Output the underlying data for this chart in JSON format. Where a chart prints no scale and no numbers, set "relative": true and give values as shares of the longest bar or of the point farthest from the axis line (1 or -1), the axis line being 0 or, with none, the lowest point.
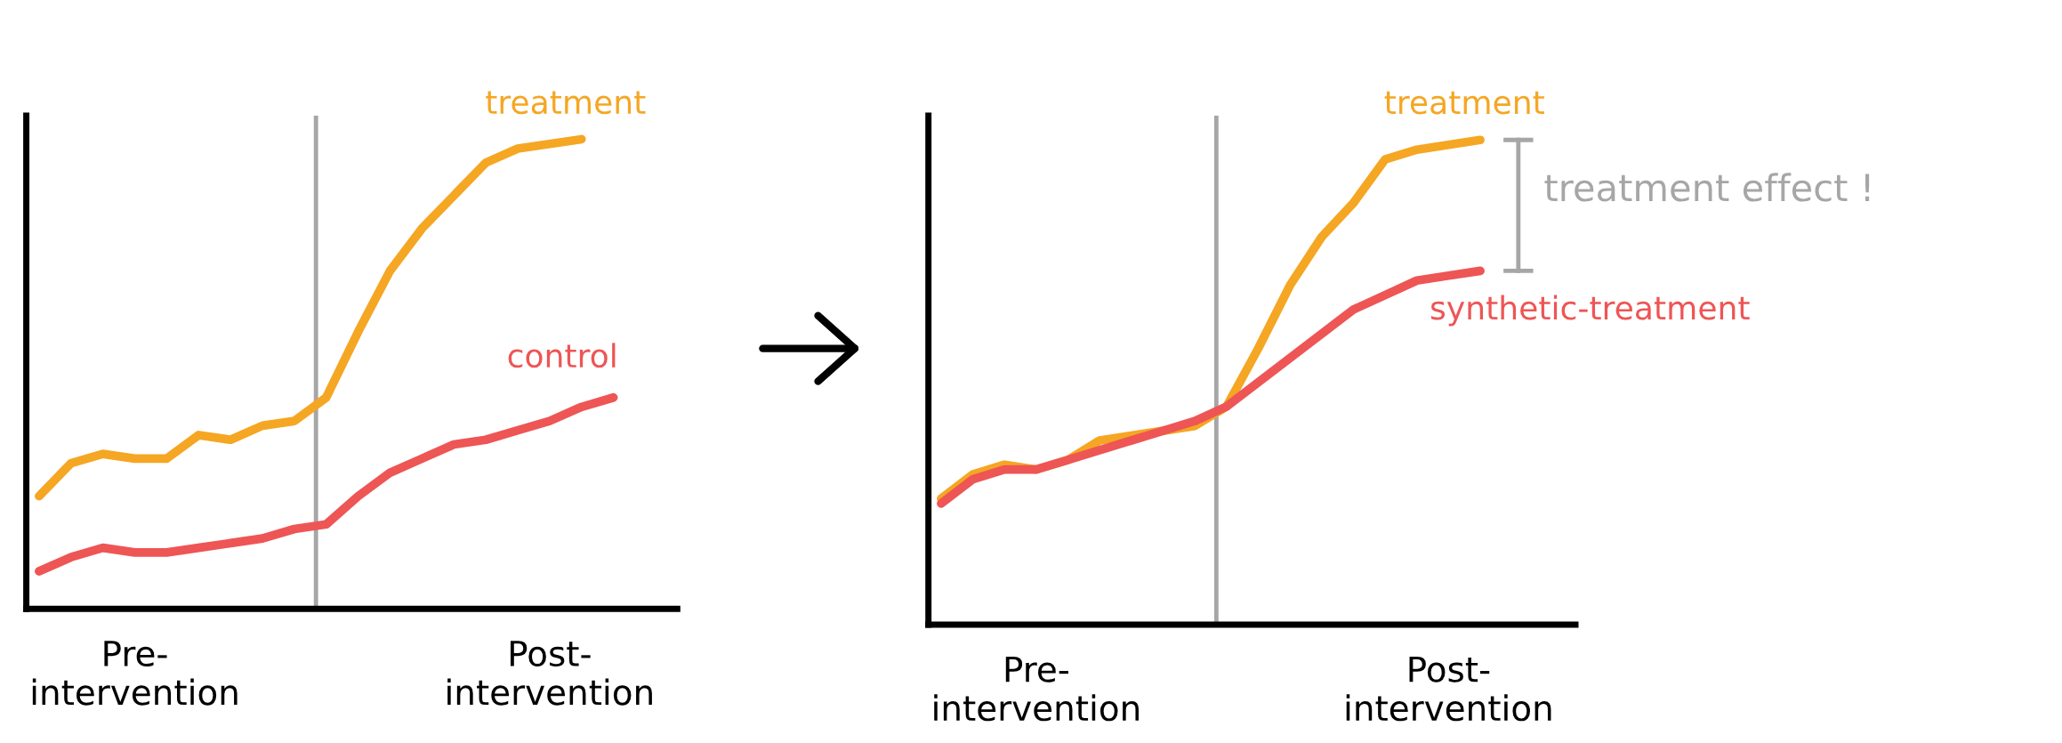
{
  "chart_data": [
    {
      "type": "line",
      "relative": true,
      "categories": [
        null,
        null,
        null,
        "Pre-\nintervention",
        null,
        null,
        null,
        null,
        null,
        null,
        null,
        null,
        null,
        null,
        null,
        null,
        "Post-\nintervention",
        null,
        null,
        null,
        null
      ],
      "tick_labels": "x",
      "legend": false,
      "grid": false,
      "marker": "none",
      "line_style": "solid",
      "series": [
        {
          "name": "treatment",
          "color": "#f5a623",
          "values": [
            0.24,
            0.31,
            0.33,
            0.32,
            0.32,
            0.37,
            0.36,
            0.39,
            0.4,
            0.45,
            0.59,
            0.72,
            0.81,
            0.88,
            0.95,
            0.98,
            0.99,
            1.0,
            null,
            null,
            null
          ]
        },
        {
          "name": "control",
          "color": "#ee5555",
          "values": [
            0.08,
            0.11,
            0.13,
            0.12,
            0.12,
            0.13,
            0.14,
            0.15,
            0.17,
            0.18,
            0.24,
            0.29,
            0.32,
            0.35,
            0.36,
            0.38,
            0.4,
            0.43,
            0.45,
            null,
            null
          ]
        }
      ]
    },
    {
      "type": "line",
      "relative": true,
      "categories": [
        null,
        null,
        null,
        "Pre-\nintervention",
        null,
        null,
        null,
        null,
        null,
        null,
        null,
        null,
        null,
        null,
        null,
        null,
        "Post-\nintervention",
        null,
        null,
        null,
        null
      ],
      "tick_labels": "x",
      "legend": false,
      "grid": false,
      "marker": "none",
      "line_style": "solid",
      "annotations": [
        "treatment effect !"
      ],
      "series": [
        {
          "name": "treatment",
          "color": "#f5a623",
          "values": [
            0.26,
            0.31,
            0.33,
            0.32,
            0.34,
            0.38,
            0.39,
            0.4,
            0.41,
            0.45,
            0.57,
            0.7,
            0.8,
            0.87,
            0.96,
            0.98,
            0.99,
            1.0,
            null,
            null,
            null
          ]
        },
        {
          "name": "synthetic-treatment",
          "color": "#ee5555",
          "values": [
            0.25,
            0.3,
            0.32,
            0.32,
            0.34,
            0.36,
            0.38,
            0.4,
            0.42,
            0.45,
            0.5,
            0.55,
            0.6,
            0.65,
            0.68,
            0.71,
            0.72,
            0.73,
            null,
            null,
            null
          ]
        }
      ]
    }
  ]
}
